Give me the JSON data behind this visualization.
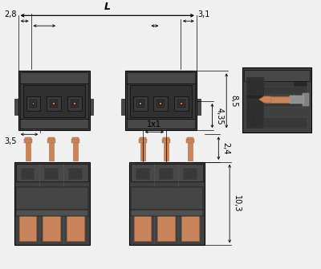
{
  "bg_color": "#f0f0f0",
  "dark_gray": "#404040",
  "med_gray": "#505050",
  "slot_gray": "#383838",
  "inner_gray": "#484848",
  "darker": "#303030",
  "copper": "#c8845a",
  "copper_dark": "#a86840",
  "line_color": "#000000",
  "font_size": 7,
  "dims": {
    "L": "L",
    "d1": "2,8",
    "d2": "3,1",
    "d3": "4,35",
    "d4": "8,5",
    "d5": "3,5",
    "d6": "1x1",
    "d7": "2,4",
    "d8": "10,3"
  }
}
